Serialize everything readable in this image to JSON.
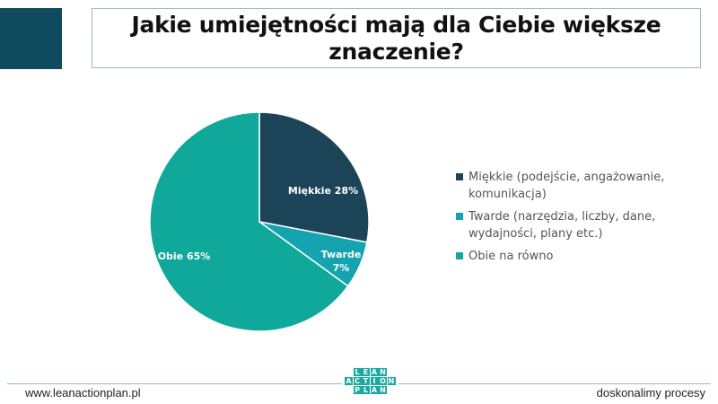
{
  "header": {
    "title_line1": "Jakie umiejętności mają dla Ciebie większe",
    "title_line2": "znaczenie?",
    "accent_color": "#0f4a5e"
  },
  "chart_data": {
    "type": "pie",
    "title": "Jakie umiejętności mają dla Ciebie większe znaczenie?",
    "categories": [
      "Miękkie (podejście, angażowanie, komunikacja)",
      "Twarde (narzędzia, liczby, dane, wydajności, plany etc.)",
      "Obie na równo"
    ],
    "values": [
      28,
      7,
      65
    ],
    "unit": "%",
    "slice_labels": [
      "Miękkie 28%",
      "Twarde 7%",
      "Obie 65%"
    ],
    "colors": [
      "#1b4459",
      "#15a3b0",
      "#10a89a"
    ],
    "legend_position": "right",
    "start_angle_deg": 0,
    "direction": "clockwise"
  },
  "slice_labels": {
    "miekkie": "Miękkie 28%",
    "twarde_line1": "Twarde",
    "twarde_line2": "7%",
    "obie": "Obie 65%"
  },
  "legend": {
    "items": [
      {
        "label": "Miękkie (podejście, angażowanie, komunikacja)",
        "color": "#1b4459"
      },
      {
        "label": "Twarde (narzędzia, liczby, dane, wydajności, plany etc.)",
        "color": "#15a3b0"
      },
      {
        "label": "Obie na równo",
        "color": "#10a89a"
      }
    ]
  },
  "footer": {
    "website": "www.leanactionplan.pl",
    "tagline": "doskonalimy procesy",
    "logo_rows": [
      [
        "L",
        "E",
        "A",
        "N"
      ],
      [
        "A",
        "C",
        "T",
        "I",
        "O",
        "N"
      ],
      [
        "P",
        "L",
        "A",
        "N"
      ]
    ]
  }
}
